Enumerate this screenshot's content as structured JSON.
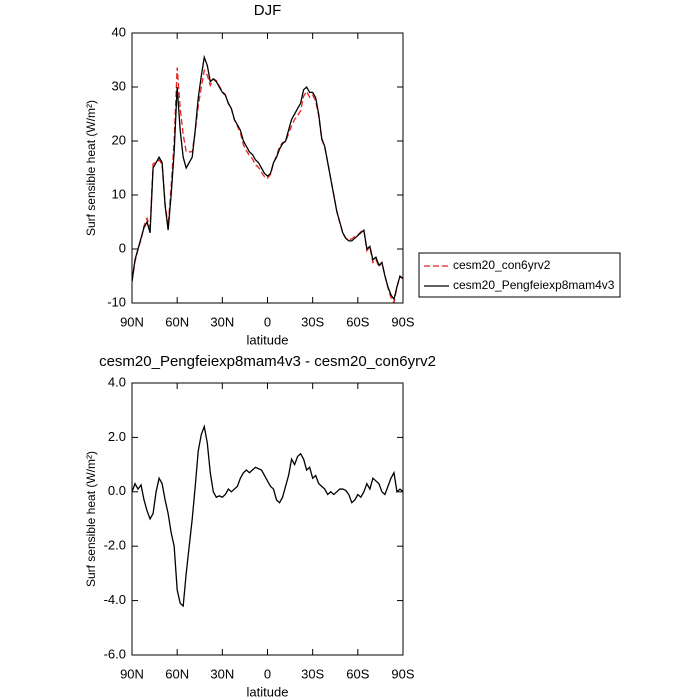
{
  "chart_data": [
    {
      "type": "line",
      "title": "DJF",
      "xlabel": "latitude",
      "ylabel": "Surf sensible heat (W/m²)",
      "x": [
        90,
        88,
        86,
        84,
        82,
        80,
        78,
        76,
        74,
        72,
        70,
        68,
        66,
        64,
        62,
        60,
        58,
        56,
        54,
        52,
        50,
        48,
        46,
        44,
        42,
        40,
        38,
        36,
        34,
        32,
        30,
        28,
        26,
        24,
        22,
        20,
        18,
        16,
        14,
        12,
        10,
        8,
        6,
        4,
        2,
        0,
        -2,
        -4,
        -6,
        -8,
        -10,
        -12,
        -14,
        -16,
        -18,
        -20,
        -22,
        -24,
        -26,
        -28,
        -30,
        -32,
        -34,
        -36,
        -38,
        -40,
        -42,
        -44,
        -46,
        -48,
        -50,
        -52,
        -54,
        -56,
        -58,
        -60,
        -62,
        -64,
        -66,
        -68,
        -70,
        -72,
        -74,
        -76,
        -78,
        -80,
        -82,
        -84,
        -86,
        -88,
        -90
      ],
      "series": [
        {
          "name": "cesm20_con6yrv2",
          "color": "#e8231f",
          "dashed": true,
          "values": [
            -6,
            -2.3,
            -0.1,
            1.75,
            4.3,
            5.7,
            4,
            15.8,
            16,
            16.5,
            15.7,
            8.3,
            4.3,
            11.5,
            20,
            33.6,
            26.1,
            21.2,
            18,
            18,
            18,
            21.8,
            26.5,
            29.9,
            33.1,
            32.2,
            30.3,
            31.5,
            31.2,
            30.15,
            29.2,
            28.6,
            26.9,
            26,
            23.9,
            22.8,
            21.5,
            19.3,
            18.2,
            17.3,
            16.7,
            15.6,
            15.15,
            14.2,
            13.4,
            13.1,
            13.8,
            15.9,
            17.3,
            18.9,
            19.7,
            19.8,
            21.4,
            22.8,
            24,
            24.7,
            25.6,
            28.3,
            29.2,
            28.1,
            28.5,
            27.4,
            24.7,
            20.3,
            18.9,
            16.1,
            13,
            10.1,
            7,
            4.9,
            2.9,
            1.95,
            1.6,
            1.9,
            2.3,
            2.6,
            3.2,
            3.5,
            -0.3,
            0.4,
            -2.5,
            -1.9,
            -3.3,
            -2.5,
            -4.9,
            -7.2,
            -9,
            -10,
            -7,
            -5.1,
            -5.5
          ]
        },
        {
          "name": "cesm20_Pengfeiexp8mam4v3",
          "color": "#000000",
          "dashed": false,
          "values": [
            -6,
            -2,
            0,
            2,
            4,
            5,
            3,
            15,
            16,
            17,
            16,
            8,
            3.5,
            10,
            18,
            30,
            22,
            17,
            15,
            16,
            17,
            22,
            28,
            32,
            35.5,
            34,
            31,
            31.5,
            31,
            30,
            29,
            28.5,
            27,
            26,
            24,
            23,
            22,
            20,
            19,
            18,
            17.5,
            16.5,
            16,
            15,
            14,
            13.5,
            14,
            16,
            17,
            18.5,
            19.5,
            20,
            22,
            24,
            25,
            26,
            27,
            29.5,
            30,
            29,
            29,
            28,
            25,
            20.5,
            19,
            16,
            13,
            10,
            7,
            5,
            3,
            2,
            1.5,
            1.5,
            2,
            2.5,
            3,
            3.5,
            0,
            0.5,
            -2,
            -1.5,
            -3,
            -2.5,
            -5,
            -7,
            -8.5,
            -9.3,
            -7,
            -5,
            -5.5
          ]
        }
      ],
      "xlim": [
        90,
        -90
      ],
      "xticks": [
        {
          "value": 90,
          "label": "90N"
        },
        {
          "value": 60,
          "label": "60N"
        },
        {
          "value": 30,
          "label": "30N"
        },
        0,
        {
          "value": -30,
          "label": "30S"
        },
        {
          "value": -60,
          "label": "60S"
        },
        {
          "value": -90,
          "label": "90S"
        }
      ],
      "ylim": [
        -10,
        40
      ],
      "yticks": [
        -10,
        0,
        10,
        20,
        30,
        40
      ],
      "legend": "right"
    },
    {
      "type": "line",
      "title": "cesm20_Pengfeiexp8mam4v3 - cesm20_con6yrv2",
      "xlabel": "latitude",
      "ylabel": "Surf sensible heat (W/m²)",
      "x": [
        90,
        88,
        86,
        84,
        82,
        80,
        78,
        76,
        74,
        72,
        70,
        68,
        66,
        64,
        62,
        60,
        58,
        56,
        54,
        52,
        50,
        48,
        46,
        44,
        42,
        40,
        38,
        36,
        34,
        32,
        30,
        28,
        26,
        24,
        22,
        20,
        18,
        16,
        14,
        12,
        10,
        8,
        6,
        4,
        2,
        0,
        -2,
        -4,
        -6,
        -8,
        -10,
        -12,
        -14,
        -16,
        -18,
        -20,
        -22,
        -24,
        -26,
        -28,
        -30,
        -32,
        -34,
        -36,
        -38,
        -40,
        -42,
        -44,
        -46,
        -48,
        -50,
        -52,
        -54,
        -56,
        -58,
        -60,
        -62,
        -64,
        -66,
        -68,
        -70,
        -72,
        -74,
        -76,
        -78,
        -80,
        -82,
        -84,
        -86,
        -88,
        -90
      ],
      "color": "#000000",
      "values": [
        0,
        0.3,
        0.1,
        0.25,
        -0.3,
        -0.7,
        -1,
        -0.8,
        0,
        0.5,
        0.3,
        -0.3,
        -0.8,
        -1.5,
        -2,
        -3.6,
        -4.1,
        -4.2,
        -3,
        -2,
        -1,
        0.2,
        1.5,
        2.1,
        2.4,
        1.8,
        0.7,
        0,
        -0.2,
        -0.15,
        -0.2,
        -0.1,
        0.1,
        0,
        0.1,
        0.2,
        0.5,
        0.7,
        0.8,
        0.7,
        0.8,
        0.9,
        0.85,
        0.8,
        0.6,
        0.4,
        0.2,
        0.1,
        -0.3,
        -0.4,
        -0.2,
        0.2,
        0.6,
        1.2,
        1,
        1.3,
        1.4,
        1.2,
        0.8,
        0.9,
        0.5,
        0.6,
        0.3,
        0.2,
        0.1,
        -0.1,
        0,
        -0.1,
        0,
        0.1,
        0.1,
        0.05,
        -0.1,
        -0.4,
        -0.3,
        -0.1,
        -0.2,
        0,
        0.3,
        0.1,
        0.5,
        0.4,
        0.3,
        0,
        -0.1,
        0.2,
        0.5,
        0.7,
        0,
        0.1,
        0
      ],
      "xlim": [
        90,
        -90
      ],
      "xticks": [
        {
          "value": 90,
          "label": "90N"
        },
        {
          "value": 60,
          "label": "60N"
        },
        {
          "value": 30,
          "label": "30N"
        },
        0,
        {
          "value": -30,
          "label": "30S"
        },
        {
          "value": -60,
          "label": "60S"
        },
        {
          "value": -90,
          "label": "90S"
        }
      ],
      "ylim": [
        -6,
        4
      ],
      "yticks": [
        {
          "value": -6,
          "label": "-6.0"
        },
        {
          "value": -4,
          "label": "-4.0"
        },
        {
          "value": -2,
          "label": "-2.0"
        },
        {
          "value": 0,
          "label": "0.0"
        },
        {
          "value": 2,
          "label": "2.0"
        },
        {
          "value": 4,
          "label": "4.0"
        }
      ]
    }
  ]
}
